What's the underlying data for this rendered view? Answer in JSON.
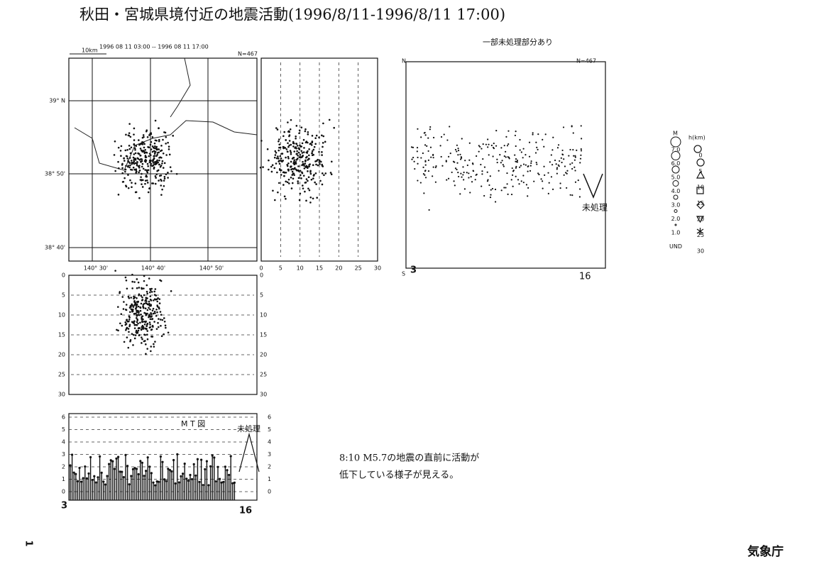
{
  "title": "秋田・宮城県境付近の地震活動(1996/8/11-1996/8/11 17:00)",
  "map": {
    "period": "1996 08 11 03:00 -- 1996 08 11 17:00",
    "scale": "10km",
    "count": "N=467",
    "lat_labels": [
      "39° N",
      "38° 50'",
      "38° 40'"
    ],
    "lon_labels": [
      "140° 30'",
      "140° 40'",
      "140° 50'"
    ]
  },
  "cross_section": {
    "x_labels": [
      "0",
      "5",
      "10",
      "15",
      "20",
      "25",
      "30"
    ]
  },
  "space_time": {
    "note": "一部未処理部分あり",
    "count": "N=467",
    "north": "N",
    "south": "S",
    "start": "3",
    "end": "16",
    "unprocessed": "未処理"
  },
  "depth_section": {
    "labels": [
      "0",
      "5",
      "10",
      "15",
      "20",
      "25",
      "30"
    ]
  },
  "mt": {
    "title": "M T 図",
    "unprocessed": "未処理",
    "labels": [
      "6",
      "5",
      "4",
      "3",
      "2",
      "1",
      "0"
    ],
    "start": "3",
    "end": "16"
  },
  "legend": {
    "m_header": "M",
    "h_header": "h(km)",
    "m_labels": [
      "7.0",
      "6.0",
      "5.0",
      "4.0",
      "3.0",
      "2.0",
      "1.0",
      "UND"
    ],
    "h_labels": [
      "0",
      "5",
      "10",
      "15",
      "20",
      "25",
      "30"
    ]
  },
  "comment": [
    "8:10 M5.7の地震の直前に活動が",
    "低下している様子が見える。"
  ],
  "footer": {
    "agency": "気象庁",
    "page": "1"
  }
}
